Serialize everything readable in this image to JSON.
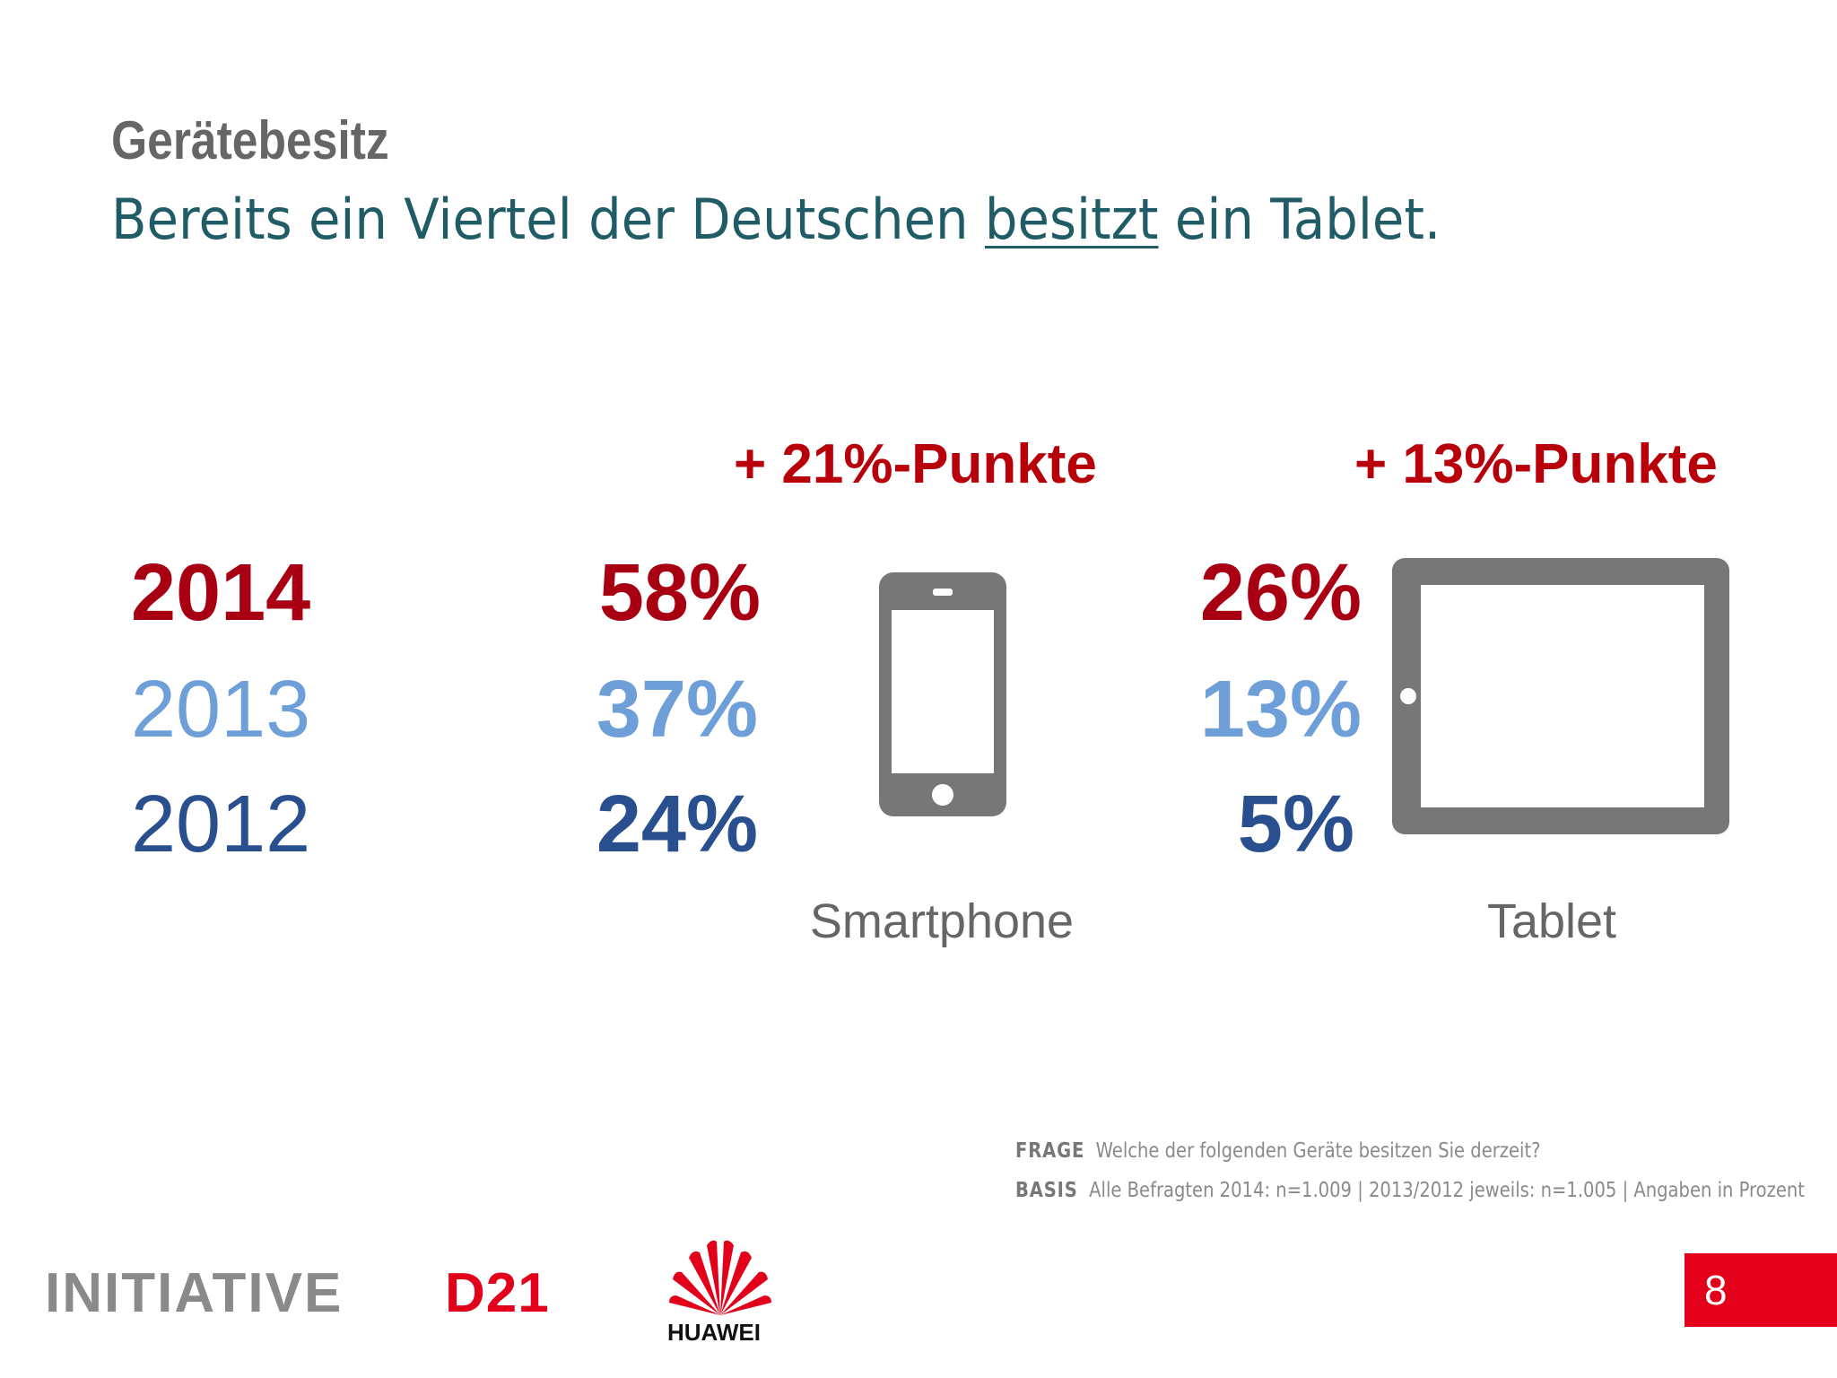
{
  "header": {
    "title": "Gerätebesitz",
    "subtitle_before": "Bereits ein Viertel der Deutschen ",
    "subtitle_underlined": "besitzt",
    "subtitle_after": " ein Tablet."
  },
  "years": [
    "2014",
    "2013",
    "2012"
  ],
  "devices": [
    {
      "name": "Smartphone",
      "delta": "+ 21%-Punkte",
      "values": [
        "58%",
        "37%",
        "24%"
      ],
      "icon": "smartphone-icon"
    },
    {
      "name": "Tablet",
      "delta": "+ 13%-Punkte",
      "values": [
        "26%",
        "13%",
        "5%"
      ],
      "icon": "tablet-icon"
    }
  ],
  "footnote": {
    "frage_label": "FRAGE",
    "frage_text": "Welche der folgenden Geräte besitzen Sie derzeit?",
    "basis_label": "BASIS",
    "basis_text": "Alle Befragten 2014: n=1.009 | 2013/2012 jeweils: n=1.005 | Angaben in Prozent"
  },
  "logos": {
    "initiative": "INITIATIVE",
    "d21": "D21",
    "huawei": "HUAWEI"
  },
  "page_number": "8",
  "colors": {
    "year_2014": "#a80012",
    "year_2013": "#6e9fd8",
    "year_2012": "#2a4f8e",
    "delta": "#b8000b",
    "accent_red": "#e2001a",
    "icon_gray": "#777777",
    "subtitle_teal": "#1f5c66"
  }
}
